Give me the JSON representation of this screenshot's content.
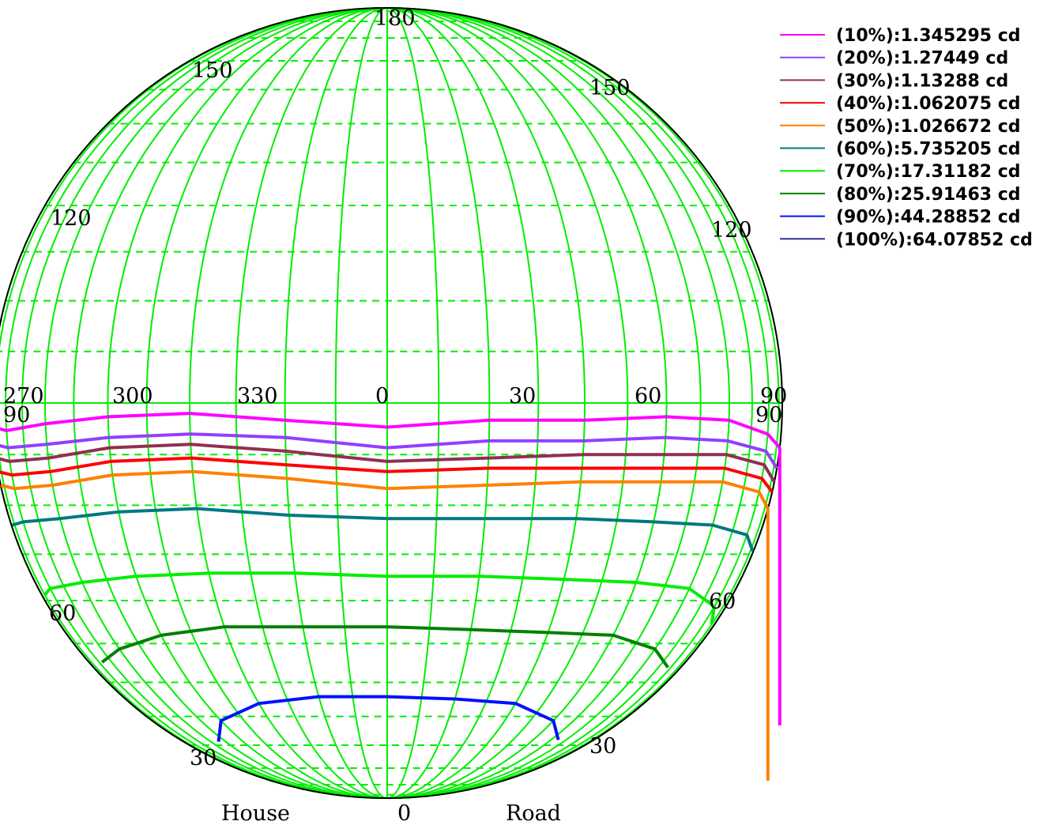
{
  "chart_data": {
    "type": "line",
    "title": "",
    "grid": true,
    "legend_position": "top-right",
    "colors": {
      "background": "#ffffff",
      "outline": "#000000",
      "grid": "#00ee00",
      "axis": "#00ee00"
    },
    "axis_labels": {
      "bottom_left": "House",
      "bottom_center": "0",
      "bottom_right": "Road"
    },
    "azimuth_ticks": [
      "270",
      "300",
      "330",
      "0",
      "30",
      "60",
      "90"
    ],
    "elevation_ticks_top_left": [
      "180",
      "150",
      "120"
    ],
    "elevation_ticks_top_right": [
      "150",
      "120"
    ],
    "elevation_ticks_bottom_left": [
      "90",
      "60",
      "30"
    ],
    "elevation_ticks_bottom_right": [
      "90",
      "60",
      "30"
    ],
    "x_axis": {
      "label": "",
      "range": [
        270,
        450
      ],
      "unit": "deg"
    },
    "y_axis": {
      "label": "",
      "range": [
        0,
        90
      ],
      "unit": "deg"
    },
    "series": [
      {
        "name": "(10%):1.345295 cd",
        "color": "#ff00ff",
        "x": [
          270,
          285,
          300,
          315,
          330,
          345,
          360,
          375,
          390,
          405,
          420,
          435,
          450
        ],
        "y": [
          86.5,
          86,
          87,
          88,
          88.5,
          87.5,
          86.5,
          87.5,
          87.5,
          88,
          87.5,
          85.5,
          83.5
        ]
      },
      {
        "name": "(20%):1.27449 cd",
        "color": "#9040ff",
        "x": [
          270,
          285,
          300,
          315,
          330,
          345,
          360,
          375,
          390,
          405,
          420,
          435,
          450
        ],
        "y": [
          84,
          83.5,
          84,
          85,
          85.5,
          85,
          83.5,
          84.5,
          84.5,
          85,
          84.5,
          83,
          80.5
        ]
      },
      {
        "name": "(30%):1.13288 cd",
        "color": "#903050",
        "x": [
          270,
          285,
          300,
          315,
          330,
          345,
          360,
          375,
          390,
          405,
          420,
          435,
          450
        ],
        "y": [
          82,
          81.5,
          82,
          83.5,
          84,
          83,
          81.5,
          82,
          82.5,
          82.5,
          82.5,
          81,
          78.5
        ]
      },
      {
        "name": "(40%):1.062075 cd",
        "color": "#ff0000",
        "x": [
          270,
          285,
          300,
          315,
          330,
          345,
          360,
          375,
          390,
          405,
          420,
          435,
          450
        ],
        "y": [
          80,
          79.5,
          80,
          81.5,
          82,
          81,
          80,
          80.5,
          80.5,
          80.5,
          80.5,
          79,
          77
        ]
      },
      {
        "name": "(50%):1.026672 cd",
        "color": "#ff8000",
        "x": [
          270,
          285,
          300,
          315,
          330,
          345,
          360,
          375,
          390,
          405,
          420,
          435,
          450
        ],
        "y": [
          78,
          77.5,
          78,
          79.5,
          80,
          79,
          77.5,
          78,
          78.5,
          78.5,
          78.5,
          77,
          74.5
        ]
      },
      {
        "name": "(60%):5.735205 cd",
        "color": "#007880",
        "x": [
          274,
          285,
          300,
          315,
          330,
          345,
          360,
          375,
          390,
          405,
          420,
          435,
          446
        ],
        "y": [
          72,
          72.5,
          73,
          74,
          74.5,
          73.5,
          73,
          73,
          73,
          72.5,
          72,
          70.5,
          68
        ]
      },
      {
        "name": "(70%):17.31182 cd",
        "color": "#00ee00",
        "x": [
          278,
          285,
          300,
          315,
          330,
          345,
          360,
          375,
          390,
          405,
          420,
          435,
          442
        ],
        "y": [
          61,
          62,
          63,
          64,
          64.5,
          64.5,
          64,
          64,
          63.5,
          63,
          62,
          59,
          56
        ]
      },
      {
        "name": "(80%):25.91463 cd",
        "color": "#008000",
        "x": [
          287,
          300,
          315,
          330,
          345,
          360,
          375,
          390,
          405,
          420,
          433
        ],
        "y": [
          49,
          51.5,
          54,
          55.5,
          55.5,
          55.5,
          55,
          54.5,
          54,
          51.5,
          48
        ]
      },
      {
        "name": "(90%):44.28852 cd",
        "color": "#0010ff",
        "x": [
          304,
          315,
          330,
          345,
          360,
          375,
          390,
          405,
          416
        ],
        "y": [
          31,
          36.5,
          40.5,
          42,
          42,
          41.5,
          40.5,
          36.5,
          31.5
        ]
      },
      {
        "name": "(100%):64.07852 cd",
        "color": "#3030a0",
        "x": [],
        "y": []
      }
    ]
  }
}
